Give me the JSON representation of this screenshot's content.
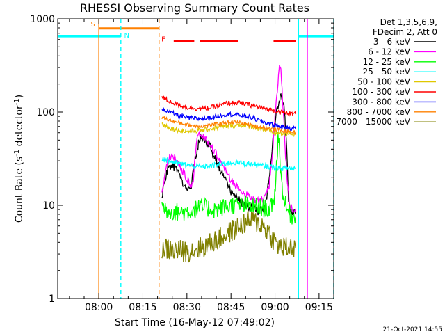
{
  "chart_data": {
    "type": "line",
    "title": "RHESSI Observing Summary Count Rates",
    "xlabel": "Start Time (16-May-12 07:49:02)",
    "ylabel_main": "Count Rate (s",
    "ylabel_sup1": "-1",
    "ylabel_mid": " detector",
    "ylabel_sup2": "-1",
    "ylabel_end": ")",
    "y_scale": "log",
    "ylim": [
      1,
      1000
    ],
    "xlim_minutes": [
      -14,
      80
    ],
    "x_unit": "minutes since 08:00",
    "xticks": [
      {
        "minute": 0,
        "label": "08:00"
      },
      {
        "minute": 15,
        "label": "08:15"
      },
      {
        "minute": 30,
        "label": "08:30"
      },
      {
        "minute": 45,
        "label": "08:45"
      },
      {
        "minute": 60,
        "label": "09:00"
      },
      {
        "minute": 75,
        "label": "09:15"
      }
    ],
    "yticks": [
      {
        "value": 1,
        "label": "1"
      },
      {
        "value": 10,
        "label": "10"
      },
      {
        "value": 100,
        "label": "100"
      },
      {
        "value": 1000,
        "label": "1000"
      }
    ],
    "legend": {
      "position": "top-right",
      "header_line1": "Det 1,3,5,6,9,",
      "header_line2": "FDecim 2, Att 0",
      "entries": [
        {
          "label": "3 - 6 keV",
          "color": "#000000"
        },
        {
          "label": "6 - 12 keV",
          "color": "#ff00ff"
        },
        {
          "label": "12 - 25 keV",
          "color": "#00ff00"
        },
        {
          "label": "25 - 50 keV",
          "color": "#00ffff"
        },
        {
          "label": "50 - 100 keV",
          "color": "#e0c800"
        },
        {
          "label": "100 - 300 keV",
          "color": "#ff0000"
        },
        {
          "label": "300 - 800 keV",
          "color": "#0000ff"
        },
        {
          "label": "800 - 7000 keV",
          "color": "#ff8000"
        },
        {
          "label": "7000 - 15000 keV",
          "color": "#808000"
        }
      ]
    },
    "series": [
      {
        "name": "3 - 6 keV",
        "color": "#000000",
        "noise": 0.05,
        "points": [
          [
            21.5,
            12
          ],
          [
            22.5,
            18
          ],
          [
            23.5,
            25
          ],
          [
            25,
            28
          ],
          [
            27,
            22
          ],
          [
            29,
            17
          ],
          [
            30.5,
            14
          ],
          [
            31.5,
            16
          ],
          [
            33,
            35
          ],
          [
            34.5,
            55
          ],
          [
            36,
            50
          ],
          [
            38,
            42
          ],
          [
            40,
            30
          ],
          [
            42,
            22
          ],
          [
            44,
            16
          ],
          [
            46,
            13
          ],
          [
            48,
            11
          ],
          [
            50,
            10
          ],
          [
            52,
            9.5
          ],
          [
            54,
            8.5
          ],
          [
            55,
            9
          ],
          [
            56,
            9
          ],
          [
            57,
            11
          ],
          [
            58,
            20
          ],
          [
            59,
            40
          ],
          [
            60,
            80
          ],
          [
            61,
            120
          ],
          [
            62,
            150
          ],
          [
            63,
            130
          ],
          [
            64,
            40
          ],
          [
            64.6,
            12
          ],
          [
            65.5,
            8
          ],
          [
            66.5,
            8
          ],
          [
            67,
            8
          ]
        ]
      },
      {
        "name": "6 - 12 keV",
        "color": "#ff00ff",
        "noise": 0.04,
        "points": [
          [
            21.5,
            14
          ],
          [
            22.5,
            20
          ],
          [
            23.5,
            30
          ],
          [
            25,
            35
          ],
          [
            27,
            28
          ],
          [
            29,
            22
          ],
          [
            31,
            17
          ],
          [
            32,
            16
          ],
          [
            33,
            40
          ],
          [
            34,
            60
          ],
          [
            36,
            55
          ],
          [
            38,
            45
          ],
          [
            40,
            35
          ],
          [
            42,
            27
          ],
          [
            44,
            21
          ],
          [
            46,
            17
          ],
          [
            48,
            15
          ],
          [
            50,
            13
          ],
          [
            52,
            12
          ],
          [
            54,
            11
          ],
          [
            56,
            12
          ],
          [
            58,
            16
          ],
          [
            59,
            30
          ],
          [
            60,
            90
          ],
          [
            61,
            200
          ],
          [
            61.5,
            330
          ],
          [
            62,
            280
          ],
          [
            63,
            80
          ],
          [
            64,
            20
          ],
          [
            65,
            10
          ],
          [
            66,
            9
          ],
          [
            67,
            8.5
          ]
        ]
      },
      {
        "name": "12 - 25 keV",
        "color": "#00ff00",
        "noise": 0.1,
        "points": [
          [
            21.5,
            10
          ],
          [
            23,
            9
          ],
          [
            26,
            8.5
          ],
          [
            30,
            8.5
          ],
          [
            35,
            9.5
          ],
          [
            40,
            9
          ],
          [
            45,
            10
          ],
          [
            50,
            10
          ],
          [
            55,
            9.5
          ],
          [
            58,
            9
          ],
          [
            59.5,
            10
          ],
          [
            60.5,
            25
          ],
          [
            61,
            55
          ],
          [
            61.5,
            45
          ],
          [
            62,
            20
          ],
          [
            63,
            12
          ],
          [
            64,
            9
          ],
          [
            66,
            7.5
          ],
          [
            67,
            7.5
          ]
        ]
      },
      {
        "name": "25 - 50 keV",
        "color": "#00ffff",
        "noise": 0.03,
        "points": [
          [
            21.5,
            32
          ],
          [
            24,
            30
          ],
          [
            27,
            28
          ],
          [
            30,
            27
          ],
          [
            33,
            26
          ],
          [
            36,
            26
          ],
          [
            40,
            27
          ],
          [
            43,
            28
          ],
          [
            46,
            29
          ],
          [
            50,
            28
          ],
          [
            54,
            27
          ],
          [
            58,
            26
          ],
          [
            61,
            25
          ],
          [
            64,
            25
          ],
          [
            67,
            25
          ]
        ]
      },
      {
        "name": "50 - 100 keV",
        "color": "#e0c800",
        "noise": 0.025,
        "points": [
          [
            21.5,
            75
          ],
          [
            24,
            68
          ],
          [
            27,
            64
          ],
          [
            30,
            62
          ],
          [
            33,
            63
          ],
          [
            36,
            64
          ],
          [
            40,
            68
          ],
          [
            44,
            71
          ],
          [
            48,
            73
          ],
          [
            52,
            70
          ],
          [
            56,
            65
          ],
          [
            60,
            60
          ],
          [
            64,
            58
          ],
          [
            67,
            58
          ]
        ]
      },
      {
        "name": "100 - 300 keV",
        "color": "#ff0000",
        "noise": 0.025,
        "points": [
          [
            21.5,
            145
          ],
          [
            24,
            130
          ],
          [
            27,
            120
          ],
          [
            30,
            112
          ],
          [
            33,
            110
          ],
          [
            36,
            108
          ],
          [
            40,
            115
          ],
          [
            44,
            125
          ],
          [
            48,
            125
          ],
          [
            52,
            118
          ],
          [
            56,
            110
          ],
          [
            60,
            103
          ],
          [
            64,
            97
          ],
          [
            67,
            95
          ]
        ]
      },
      {
        "name": "300 - 800 keV",
        "color": "#0000ff",
        "noise": 0.025,
        "points": [
          [
            21.5,
            110
          ],
          [
            24,
            100
          ],
          [
            27,
            92
          ],
          [
            30,
            87
          ],
          [
            33,
            85
          ],
          [
            36,
            85
          ],
          [
            40,
            90
          ],
          [
            44,
            95
          ],
          [
            48,
            93
          ],
          [
            52,
            87
          ],
          [
            56,
            78
          ],
          [
            60,
            72
          ],
          [
            64,
            68
          ],
          [
            67,
            66
          ]
        ]
      },
      {
        "name": "800 - 7000 keV",
        "color": "#ff8000",
        "noise": 0.02,
        "points": [
          [
            21.5,
            88
          ],
          [
            24,
            82
          ],
          [
            27,
            77
          ],
          [
            30,
            73
          ],
          [
            33,
            71
          ],
          [
            36,
            71
          ],
          [
            40,
            74
          ],
          [
            44,
            78
          ],
          [
            48,
            77
          ],
          [
            52,
            72
          ],
          [
            56,
            68
          ],
          [
            60,
            65
          ],
          [
            64,
            62
          ],
          [
            67,
            60
          ]
        ]
      },
      {
        "name": "7000 - 15000 keV",
        "color": "#808000",
        "noise": 0.12,
        "points": [
          [
            21.5,
            3.5
          ],
          [
            25,
            3.3
          ],
          [
            30,
            3.2
          ],
          [
            33,
            3.4
          ],
          [
            36,
            3.6
          ],
          [
            40,
            4.2
          ],
          [
            44,
            5
          ],
          [
            48,
            6
          ],
          [
            52,
            7
          ],
          [
            56,
            6
          ],
          [
            58,
            5
          ],
          [
            60,
            4
          ],
          [
            62,
            3.5
          ],
          [
            64,
            3.5
          ],
          [
            67,
            3.5
          ]
        ]
      }
    ],
    "attenuator_state": {
      "color": "#00ffff",
      "segments": [
        [
          -14,
          7.5
        ],
        [
          68,
          80
        ]
      ],
      "level": 650
    },
    "saa_state": {
      "color": "#ff8000",
      "segments": [
        [
          0,
          20.5
        ]
      ],
      "level": 790
    },
    "flare_bars": {
      "color": "#ff0000",
      "segments": [
        [
          25.5,
          32.5
        ],
        [
          34.5,
          47.5
        ],
        [
          59.5,
          67
        ]
      ],
      "level": 580
    },
    "vlines": [
      {
        "minute": 0,
        "color": "#ff8000",
        "style": "solid"
      },
      {
        "minute": 7.5,
        "color": "#00ffff",
        "style": "dashed"
      },
      {
        "minute": 20.5,
        "color": "#ff8000",
        "style": "dashed"
      },
      {
        "minute": 68,
        "color": "#00ffff",
        "style": "solid"
      },
      {
        "minute": 71,
        "color": "#ff00ff",
        "style": "solid"
      },
      {
        "minute": 80,
        "color": "#00ffff",
        "style": "dashed"
      }
    ],
    "markers": [
      {
        "text": "S",
        "minute": -2,
        "value": 830,
        "color": "#ff8000"
      },
      {
        "text": "N",
        "minute": 9.5,
        "value": 630,
        "color": "#00ffff"
      },
      {
        "text": "F",
        "minute": 22,
        "value": 570,
        "color": "#ff0000"
      }
    ]
  },
  "footer": {
    "timestamp": "21-Oct-2021 14:55"
  }
}
